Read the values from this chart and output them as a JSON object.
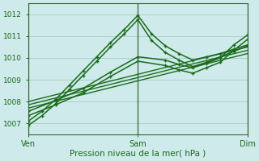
{
  "xlabel": "Pression niveau de la mer( hPa )",
  "ylim": [
    1006.5,
    1012.5
  ],
  "yticks": [
    1007,
    1008,
    1009,
    1010,
    1011,
    1012
  ],
  "x_ven": 0,
  "x_sam": 48,
  "x_dim": 96,
  "background_color": "#ceeaea",
  "grid_color": "#a8cccc",
  "line_color": "#1a6b1a",
  "lines": [
    {
      "x": [
        0,
        6,
        12,
        18,
        24,
        30,
        36,
        42,
        48,
        54,
        60,
        66,
        72,
        78,
        84,
        90,
        96
      ],
      "y": [
        1006.9,
        1007.35,
        1007.9,
        1008.55,
        1009.2,
        1009.85,
        1010.5,
        1011.1,
        1011.75,
        1010.8,
        1010.25,
        1009.9,
        1009.6,
        1009.8,
        1010.05,
        1010.3,
        1010.55
      ],
      "marker": "+",
      "lw": 1.1
    },
    {
      "x": [
        0,
        6,
        12,
        18,
        24,
        30,
        36,
        42,
        48,
        54,
        60,
        66,
        72,
        78,
        84,
        90,
        96
      ],
      "y": [
        1007.1,
        1007.55,
        1008.1,
        1008.75,
        1009.4,
        1010.05,
        1010.7,
        1011.3,
        1011.95,
        1011.1,
        1010.55,
        1010.2,
        1009.9,
        1010.05,
        1010.2,
        1010.4,
        1010.6
      ],
      "marker": "+",
      "lw": 1.1
    },
    {
      "x": [
        0,
        96
      ],
      "y": [
        1007.7,
        1010.2
      ],
      "marker": null,
      "lw": 1.0
    },
    {
      "x": [
        0,
        96
      ],
      "y": [
        1007.85,
        1010.35
      ],
      "marker": null,
      "lw": 1.0
    },
    {
      "x": [
        0,
        96
      ],
      "y": [
        1008.0,
        1010.5
      ],
      "marker": null,
      "lw": 1.0
    },
    {
      "x": [
        0,
        12,
        24,
        36,
        48,
        60,
        66,
        72,
        78,
        84,
        90,
        96
      ],
      "y": [
        1007.55,
        1008.05,
        1008.6,
        1009.35,
        1010.05,
        1009.9,
        1009.7,
        1009.55,
        1009.75,
        1010.0,
        1010.6,
        1011.05
      ],
      "marker": "+",
      "lw": 1.1
    },
    {
      "x": [
        0,
        12,
        24,
        36,
        48,
        60,
        66,
        72,
        78,
        84,
        90,
        96
      ],
      "y": [
        1007.35,
        1007.85,
        1008.4,
        1009.15,
        1009.85,
        1009.65,
        1009.45,
        1009.3,
        1009.55,
        1009.8,
        1010.35,
        1010.85
      ],
      "marker": "+",
      "lw": 1.1
    }
  ],
  "xtick_positions": [
    0,
    48,
    96
  ],
  "xtick_labels": [
    "Ven",
    "Sam",
    "Dim"
  ],
  "vline_color": "#556655",
  "spine_color": "#336633"
}
